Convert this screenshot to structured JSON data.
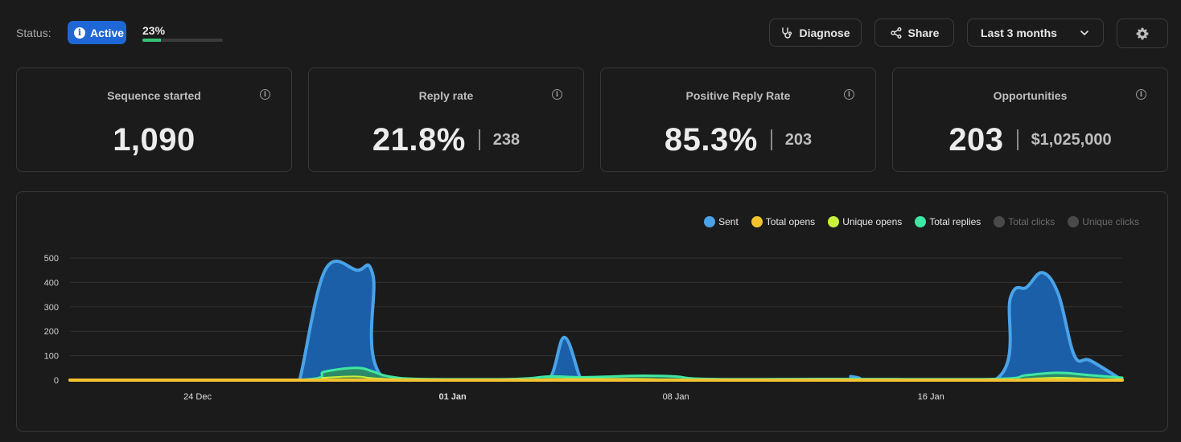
{
  "status": {
    "label": "Status:",
    "badge": "Active",
    "progress_text": "23%",
    "progress": 0.23
  },
  "toolbar": {
    "diagnose": "Diagnose",
    "share": "Share",
    "range": "Last 3 months"
  },
  "cards": [
    {
      "title": "Sequence started",
      "value": "1,090",
      "sub": ""
    },
    {
      "title": "Reply rate",
      "value": "21.8%",
      "sub": "238"
    },
    {
      "title": "Positive Reply Rate",
      "value": "85.3%",
      "sub": "203"
    },
    {
      "title": "Opportunities",
      "value": "203",
      "sub": "$1,025,000"
    }
  ],
  "colors": {
    "accent": "#1f67d6",
    "progress": "#35c37a",
    "sent": "#4aa3e8",
    "sent_fill": "#1b5fa8",
    "total_opens": "#f2c230",
    "unique_opens": "#c8f03c",
    "total_replies": "#3fe8a2",
    "disabled": "#4a4a4a"
  },
  "chart_data": {
    "type": "area",
    "ylim": [
      0,
      500
    ],
    "yticks": [
      "500",
      "400",
      "300",
      "200",
      "100",
      "0"
    ],
    "xticks": [
      {
        "label": "24 Dec",
        "day": 4,
        "bold": false
      },
      {
        "label": "01 Jan",
        "day": 12,
        "bold": true
      },
      {
        "label": "08 Jan",
        "day": 19,
        "bold": false
      },
      {
        "label": "16 Jan",
        "day": 27,
        "bold": false
      }
    ],
    "x_days": 33,
    "legend": [
      {
        "name": "Sent",
        "color": "#4aa3e8",
        "active": true
      },
      {
        "name": "Total opens",
        "color": "#f2c230",
        "active": true
      },
      {
        "name": "Unique opens",
        "color": "#c8f03c",
        "active": true
      },
      {
        "name": "Total replies",
        "color": "#3fe8a2",
        "active": true
      },
      {
        "name": "Total clicks",
        "color": "#4a4a4a",
        "active": false
      },
      {
        "name": "Unique clicks",
        "color": "#4a4a4a",
        "active": false
      }
    ],
    "series": [
      {
        "name": "Sent",
        "values": [
          [
            0,
            0
          ],
          [
            7,
            0
          ],
          [
            7.2,
            0
          ],
          [
            8,
            450
          ],
          [
            9,
            450
          ],
          [
            9.5,
            430
          ],
          [
            9.9,
            0
          ],
          [
            14,
            0
          ],
          [
            15,
            0
          ],
          [
            15.5,
            175
          ],
          [
            16,
            10
          ],
          [
            16.2,
            0
          ],
          [
            24,
            0
          ],
          [
            24.5,
            15
          ],
          [
            25,
            0
          ],
          [
            29,
            0
          ],
          [
            29.5,
            340
          ],
          [
            30,
            380
          ],
          [
            30.5,
            440
          ],
          [
            31,
            350
          ],
          [
            31.5,
            100
          ],
          [
            32,
            80
          ],
          [
            33,
            0
          ]
        ]
      },
      {
        "name": "Total replies",
        "values": [
          [
            0,
            0
          ],
          [
            7,
            0
          ],
          [
            8,
            35
          ],
          [
            9,
            50
          ],
          [
            9.5,
            35
          ],
          [
            10,
            15
          ],
          [
            11,
            5
          ],
          [
            14,
            5
          ],
          [
            15,
            15
          ],
          [
            16,
            12
          ],
          [
            17,
            15
          ],
          [
            18,
            18
          ],
          [
            19,
            15
          ],
          [
            20,
            5
          ],
          [
            24,
            5
          ],
          [
            29,
            5
          ],
          [
            30,
            20
          ],
          [
            31,
            30
          ],
          [
            32,
            20
          ],
          [
            33,
            10
          ]
        ]
      },
      {
        "name": "Unique opens",
        "values": [
          [
            0,
            0
          ],
          [
            7,
            0
          ],
          [
            8,
            10
          ],
          [
            9,
            15
          ],
          [
            10,
            5
          ],
          [
            14,
            0
          ],
          [
            15,
            5
          ],
          [
            16,
            5
          ],
          [
            18,
            5
          ],
          [
            20,
            0
          ],
          [
            29,
            0
          ],
          [
            30,
            5
          ],
          [
            31,
            10
          ],
          [
            32,
            5
          ],
          [
            33,
            0
          ]
        ]
      },
      {
        "name": "Total opens",
        "values": [
          [
            0,
            0
          ],
          [
            33,
            0
          ]
        ]
      }
    ]
  }
}
